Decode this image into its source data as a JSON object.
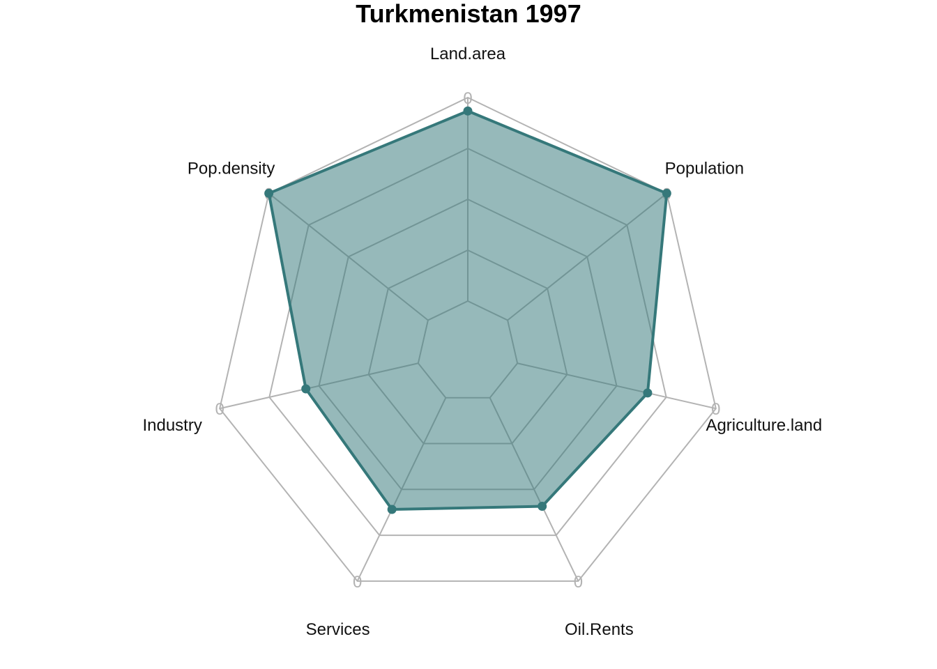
{
  "chart_data": {
    "type": "radar",
    "title": "Turkmenistan 1997",
    "axes": [
      "Land.area",
      "Population",
      "Agriculture.land",
      "Oil.Rents",
      "Services",
      "Industry",
      "Pop.density"
    ],
    "series": [
      {
        "values": [
          0.934,
          1.0,
          0.656,
          0.592,
          0.609,
          0.566,
          1.0
        ]
      }
    ],
    "range": [
      0,
      1
    ],
    "grid_levels": 5,
    "axis_tick_label": "0",
    "colors": {
      "series_line": "#35787a",
      "series_fill": "#35787a",
      "grid": "#b3b3b3"
    },
    "legend": "none"
  }
}
